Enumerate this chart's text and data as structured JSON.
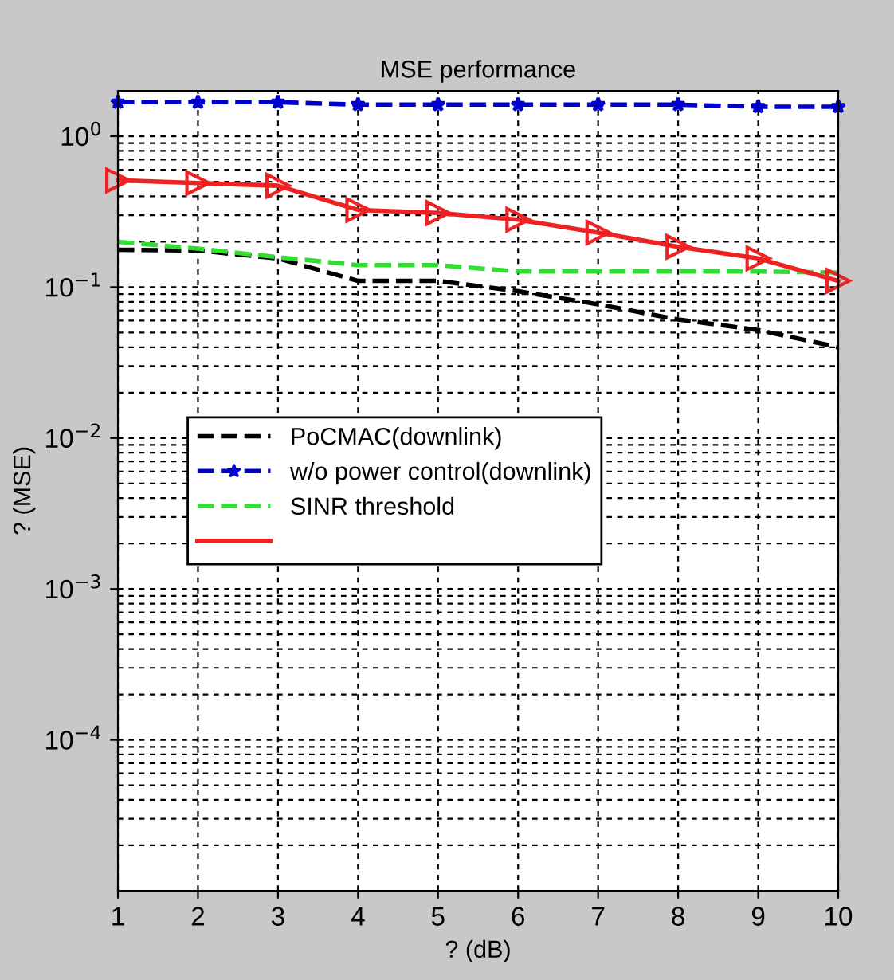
{
  "chart_data": {
    "type": "line",
    "title": "MSE performance",
    "xlabel": "? (dB)",
    "ylabel": "? (MSE)",
    "x": [
      1,
      2,
      3,
      4,
      5,
      6,
      7,
      8,
      9,
      10
    ],
    "series": [
      {
        "name": "PoCMAC(downlink)",
        "color": "#000000",
        "line_style": "dashed",
        "marker": "none",
        "values": [
          0.177,
          0.175,
          0.155,
          0.11,
          0.11,
          0.094,
          0.077,
          0.061,
          0.052,
          0.04
        ]
      },
      {
        "name": "w/o power control(downlink)",
        "color": "#0000cc",
        "line_style": "dashed",
        "marker": "star",
        "values": [
          1.68,
          1.68,
          1.68,
          1.62,
          1.62,
          1.62,
          1.62,
          1.62,
          1.57,
          1.57
        ]
      },
      {
        "name": "SINR threshold",
        "color": "#33dd33",
        "line_style": "dashed",
        "marker": "none",
        "values": [
          0.2,
          0.18,
          0.158,
          0.14,
          0.14,
          0.127,
          0.127,
          0.127,
          0.127,
          0.125
        ]
      },
      {
        "color": "#ee2222",
        "line_style": "solid",
        "marker": "triangle",
        "values": [
          0.51,
          0.49,
          0.47,
          0.325,
          0.31,
          0.28,
          0.23,
          0.185,
          0.155,
          0.11
        ]
      }
    ],
    "log": "y",
    "xlim": [
      1,
      10
    ],
    "xticks": [
      1,
      2,
      3,
      4,
      5,
      6,
      7,
      8,
      9,
      10
    ],
    "ylim": [
      1e-05,
      2
    ],
    "yticks": [
      {
        "value": 0.0001,
        "label": "10$^{−4}$"
      },
      {
        "value": 0.001,
        "label": "10$^{−3}$"
      },
      {
        "value": 0.01,
        "label": "10$^{−2}$"
      },
      {
        "value": 0.1,
        "label": "10$^{−1}$"
      },
      {
        "value": 1,
        "label": "10$^{0}$"
      }
    ],
    "grid": true,
    "legend": "center left"
  }
}
